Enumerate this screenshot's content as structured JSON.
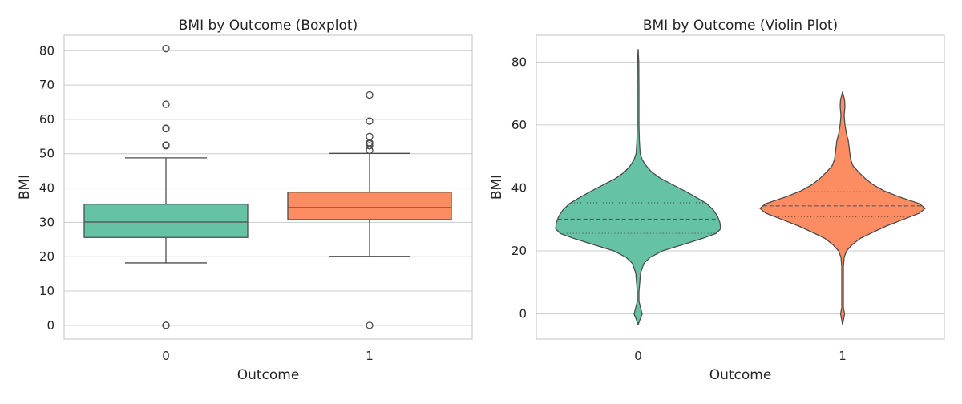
{
  "chart_data": [
    {
      "type": "boxplot",
      "title": "BMI by Outcome (Boxplot)",
      "xlabel": "Outcome",
      "ylabel": "BMI",
      "categories": [
        "0",
        "1"
      ],
      "ylim": [
        -4,
        84.5
      ],
      "yticks": [
        0,
        10,
        20,
        30,
        40,
        50,
        60,
        70,
        80
      ],
      "grid": "y",
      "series": [
        {
          "category": "0",
          "color": "#66c2a5",
          "whisker_low": 18.2,
          "q1": 25.6,
          "median": 30.1,
          "q3": 35.3,
          "whisker_high": 48.8,
          "outliers": [
            0,
            0,
            0,
            52.3,
            52.5,
            57.3,
            57.4,
            64.4,
            80.6
          ]
        },
        {
          "category": "1",
          "color": "#fc8d62",
          "whisker_low": 20.1,
          "q1": 30.8,
          "median": 34.3,
          "q3": 38.8,
          "whisker_high": 50.1,
          "outliers": [
            0,
            51.0,
            52.3,
            52.9,
            53.2,
            55.0,
            59.5,
            67.1
          ]
        }
      ]
    },
    {
      "type": "violin",
      "title": "BMI by Outcome (Violin Plot)",
      "xlabel": "Outcome",
      "ylabel": "BMI",
      "categories": [
        "0",
        "1"
      ],
      "ylim": [
        -8,
        88.5
      ],
      "yticks": [
        0,
        20,
        40,
        60,
        80
      ],
      "grid": "y",
      "inner": "quartile",
      "series": [
        {
          "category": "0",
          "color": "#66c2a5",
          "q1": 25.6,
          "median": 30.1,
          "q3": 35.3,
          "profile": [
            [
              -3.5,
              0
            ],
            [
              -2,
              2
            ],
            [
              0,
              5
            ],
            [
              2,
              3
            ],
            [
              4,
              1
            ],
            [
              7,
              1
            ],
            [
              10,
              2
            ],
            [
              13,
              3
            ],
            [
              16,
              7
            ],
            [
              18,
              15
            ],
            [
              20,
              30
            ],
            [
              22,
              55
            ],
            [
              24,
              80
            ],
            [
              25.5,
              96
            ],
            [
              27,
              102
            ],
            [
              29,
              101
            ],
            [
              31,
              98
            ],
            [
              33,
              93
            ],
            [
              35,
              85
            ],
            [
              37,
              72
            ],
            [
              39,
              58
            ],
            [
              41,
              43
            ],
            [
              43,
              28
            ],
            [
              45,
              17
            ],
            [
              47,
              10
            ],
            [
              49,
              5
            ],
            [
              51,
              2.5
            ],
            [
              55,
              1.5
            ],
            [
              60,
              1
            ],
            [
              70,
              1
            ],
            [
              80,
              0.8
            ],
            [
              84,
              0
            ]
          ]
        },
        {
          "category": "1",
          "color": "#fc8d62",
          "q1": 30.8,
          "median": 34.3,
          "q3": 38.8,
          "profile": [
            [
              -3.5,
              0
            ],
            [
              -2,
              1
            ],
            [
              0,
              2.5
            ],
            [
              2,
              1
            ],
            [
              5,
              1
            ],
            [
              10,
              1
            ],
            [
              15,
              1
            ],
            [
              18,
              2
            ],
            [
              20,
              5
            ],
            [
              22,
              12
            ],
            [
              24,
              22
            ],
            [
              26,
              38
            ],
            [
              28,
              55
            ],
            [
              30,
              75
            ],
            [
              32,
              95
            ],
            [
              33.5,
              102
            ],
            [
              35,
              95
            ],
            [
              37,
              72
            ],
            [
              39,
              52
            ],
            [
              41,
              38
            ],
            [
              43,
              28
            ],
            [
              45,
              20
            ],
            [
              47,
              13
            ],
            [
              49,
              10
            ],
            [
              51,
              9
            ],
            [
              53,
              8
            ],
            [
              55,
              7
            ],
            [
              57,
              5
            ],
            [
              60,
              3
            ],
            [
              63,
              2
            ],
            [
              66,
              3
            ],
            [
              68,
              2.5
            ],
            [
              70.5,
              0
            ]
          ]
        }
      ]
    }
  ]
}
